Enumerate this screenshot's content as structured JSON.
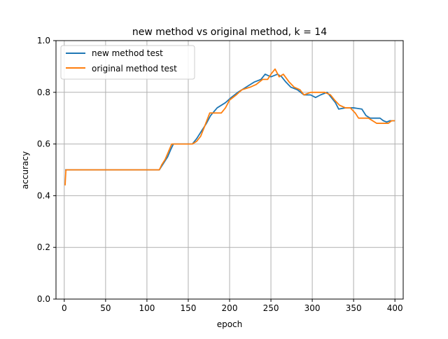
{
  "chart_data": {
    "type": "line",
    "title": "new method vs original method, k = 14",
    "xlabel": "epoch",
    "ylabel": "accuracy",
    "xlim": [
      -10,
      410
    ],
    "ylim": [
      0.0,
      1.0
    ],
    "xticks": [
      0,
      50,
      100,
      150,
      200,
      250,
      300,
      350,
      400
    ],
    "yticks": [
      0.0,
      0.2,
      0.4,
      0.6,
      0.8,
      1.0
    ],
    "xtick_labels": [
      "0",
      "50",
      "100",
      "150",
      "200",
      "250",
      "300",
      "350",
      "400"
    ],
    "ytick_labels": [
      "0.0",
      "0.2",
      "0.4",
      "0.6",
      "0.8",
      "1.0"
    ],
    "grid": true,
    "legend": "upper-left",
    "series": [
      {
        "name": "new method test",
        "color": "#1f77b4",
        "points": [
          [
            1,
            0.5
          ],
          [
            115,
            0.5
          ],
          [
            117,
            0.51
          ],
          [
            121,
            0.53
          ],
          [
            125,
            0.55
          ],
          [
            129,
            0.58
          ],
          [
            132,
            0.6
          ],
          [
            155,
            0.6
          ],
          [
            160,
            0.62
          ],
          [
            166,
            0.65
          ],
          [
            172,
            0.68
          ],
          [
            177,
            0.71
          ],
          [
            185,
            0.74
          ],
          [
            195,
            0.76
          ],
          [
            202,
            0.78
          ],
          [
            210,
            0.8
          ],
          [
            220,
            0.82
          ],
          [
            230,
            0.84
          ],
          [
            238,
            0.85
          ],
          [
            243,
            0.87
          ],
          [
            250,
            0.86
          ],
          [
            258,
            0.87
          ],
          [
            263,
            0.86
          ],
          [
            268,
            0.84
          ],
          [
            274,
            0.82
          ],
          [
            282,
            0.81
          ],
          [
            290,
            0.79
          ],
          [
            298,
            0.79
          ],
          [
            304,
            0.78
          ],
          [
            310,
            0.79
          ],
          [
            318,
            0.8
          ],
          [
            323,
            0.78
          ],
          [
            328,
            0.76
          ],
          [
            332,
            0.735
          ],
          [
            340,
            0.74
          ],
          [
            350,
            0.74
          ],
          [
            360,
            0.735
          ],
          [
            365,
            0.71
          ],
          [
            370,
            0.7
          ],
          [
            382,
            0.7
          ],
          [
            386,
            0.69
          ],
          [
            390,
            0.685
          ],
          [
            394,
            0.69
          ],
          [
            400,
            0.69
          ]
        ]
      },
      {
        "name": "original method test",
        "color": "#ff7f0e",
        "points": [
          [
            1,
            0.44
          ],
          [
            2,
            0.5
          ],
          [
            115,
            0.5
          ],
          [
            118,
            0.52
          ],
          [
            122,
            0.54
          ],
          [
            126,
            0.57
          ],
          [
            130,
            0.6
          ],
          [
            155,
            0.6
          ],
          [
            160,
            0.61
          ],
          [
            165,
            0.63
          ],
          [
            170,
            0.67
          ],
          [
            176,
            0.72
          ],
          [
            190,
            0.72
          ],
          [
            195,
            0.74
          ],
          [
            200,
            0.77
          ],
          [
            208,
            0.79
          ],
          [
            215,
            0.81
          ],
          [
            225,
            0.82
          ],
          [
            232,
            0.83
          ],
          [
            240,
            0.85
          ],
          [
            246,
            0.85
          ],
          [
            250,
            0.87
          ],
          [
            255,
            0.89
          ],
          [
            260,
            0.86
          ],
          [
            265,
            0.87
          ],
          [
            272,
            0.84
          ],
          [
            278,
            0.82
          ],
          [
            285,
            0.81
          ],
          [
            290,
            0.79
          ],
          [
            298,
            0.8
          ],
          [
            305,
            0.8
          ],
          [
            315,
            0.8
          ],
          [
            322,
            0.79
          ],
          [
            327,
            0.77
          ],
          [
            333,
            0.75
          ],
          [
            340,
            0.74
          ],
          [
            346,
            0.74
          ],
          [
            352,
            0.72
          ],
          [
            356,
            0.7
          ],
          [
            368,
            0.7
          ],
          [
            378,
            0.68
          ],
          [
            392,
            0.68
          ],
          [
            396,
            0.69
          ],
          [
            400,
            0.69
          ]
        ]
      }
    ]
  }
}
